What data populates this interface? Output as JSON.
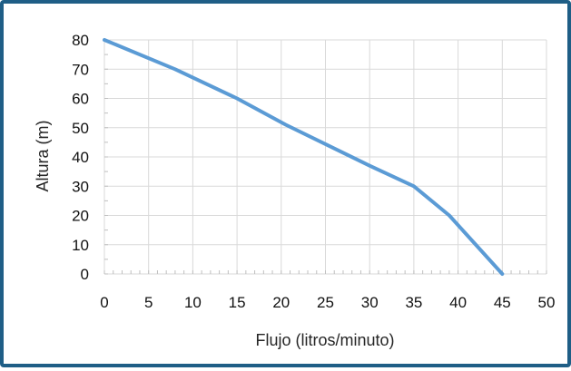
{
  "chart_data": {
    "type": "line",
    "xlabel": "Flujo (litros/minuto)",
    "ylabel": "Altura (m)",
    "xlim": [
      0,
      50
    ],
    "ylim": [
      0,
      80
    ],
    "x_ticks": [
      "0",
      "5",
      "10",
      "15",
      "20",
      "25",
      "30",
      "35",
      "40",
      "45",
      "50"
    ],
    "y_ticks": [
      "0",
      "10",
      "20",
      "30",
      "40",
      "50",
      "60",
      "70",
      "80"
    ],
    "grid": true,
    "series": [
      {
        "color": "#5b9bd5",
        "x": [
          0,
          8,
          15,
          20.5,
          30,
          35,
          39,
          45
        ],
        "y": [
          80,
          70,
          60,
          51,
          37,
          30,
          20,
          0
        ]
      }
    ]
  }
}
